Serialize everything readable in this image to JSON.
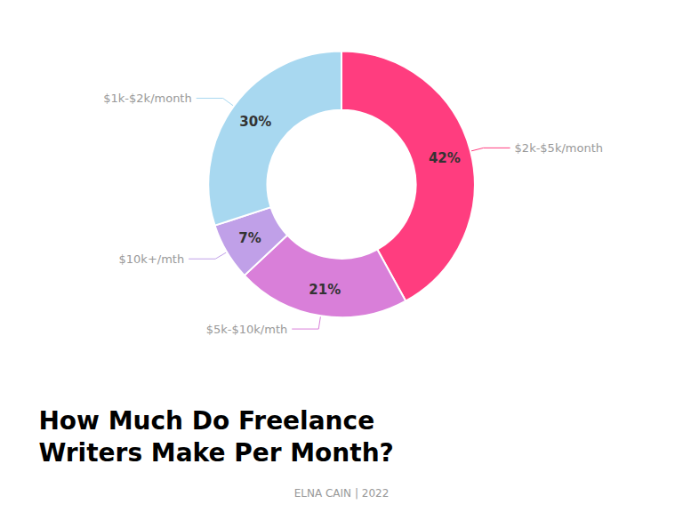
{
  "chart_data": {
    "type": "pie",
    "title": "How Much Do Freelance\nWriters Make Per Month?",
    "subtitle": "ELNA CAIN | 2022",
    "categories": [
      "$2k-$5k/month",
      "$5k-$10k/mth",
      "$10k+/mth",
      "$1k-$2k/month"
    ],
    "values": [
      42,
      21,
      7,
      30
    ],
    "value_labels": [
      "42%",
      "21%",
      "7%",
      "30%"
    ],
    "colors": [
      "#FF3D7F",
      "#D97FD9",
      "#C0A0E8",
      "#A8D8F0"
    ],
    "data_labels": true
  }
}
